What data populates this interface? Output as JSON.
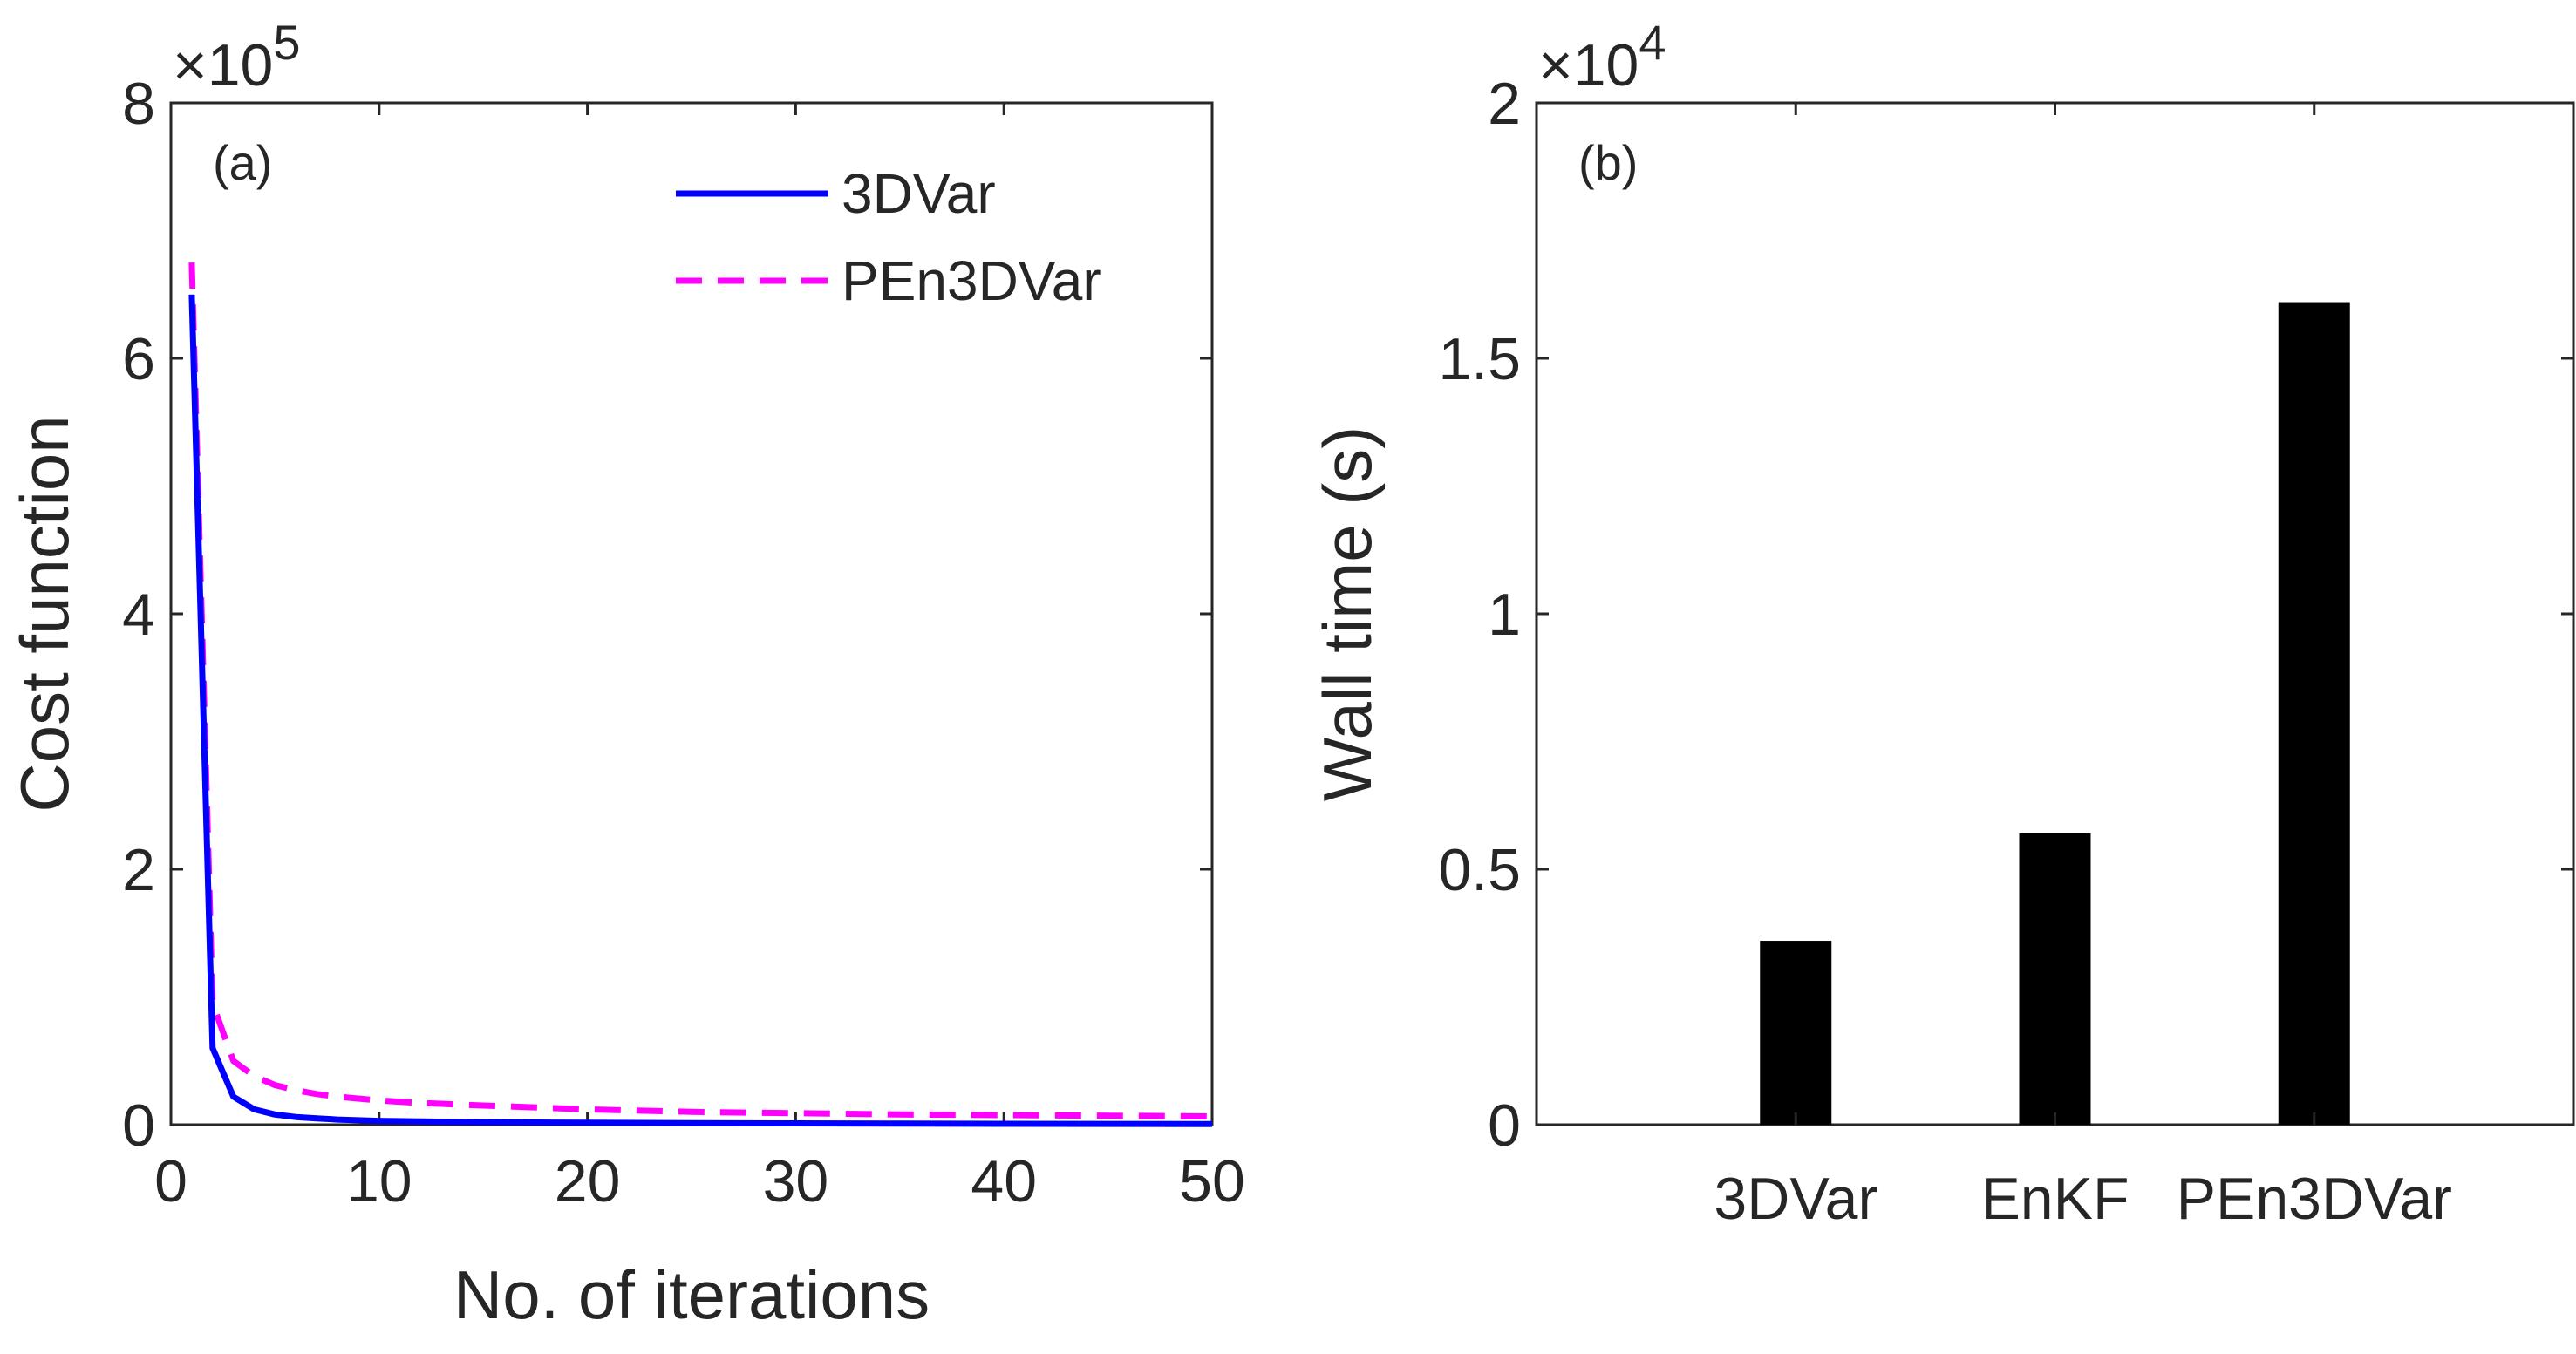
{
  "chart_data": [
    {
      "type": "line",
      "panel_label": "(a)",
      "xlabel": "No. of iterations",
      "ylabel": "Cost function",
      "y_exponent_label": "×10",
      "y_exponent": "5",
      "xlim": [
        0,
        50
      ],
      "ylim": [
        0,
        8
      ],
      "xticks": [
        "0",
        "10",
        "20",
        "30",
        "40",
        "50"
      ],
      "yticks": [
        "0",
        "2",
        "4",
        "6",
        "8"
      ],
      "legend_position": "top-right",
      "series": [
        {
          "name": "3DVar",
          "color": "#0000ff",
          "style": "solid",
          "x": [
            1,
            2,
            3,
            4,
            5,
            6,
            7,
            8,
            10,
            12,
            15,
            20,
            25,
            30,
            35,
            40,
            45,
            50
          ],
          "y": [
            6.5,
            0.6,
            0.22,
            0.12,
            0.08,
            0.06,
            0.05,
            0.04,
            0.03,
            0.025,
            0.02,
            0.015,
            0.012,
            0.01,
            0.008,
            0.007,
            0.006,
            0.005
          ]
        },
        {
          "name": "PEn3DVar",
          "color": "#ff00ff",
          "style": "dashed",
          "x": [
            1,
            2,
            3,
            4,
            5,
            6,
            7,
            8,
            10,
            12,
            15,
            20,
            25,
            30,
            35,
            40,
            45,
            50
          ],
          "y": [
            6.75,
            0.95,
            0.5,
            0.38,
            0.31,
            0.27,
            0.24,
            0.22,
            0.19,
            0.17,
            0.15,
            0.12,
            0.1,
            0.09,
            0.08,
            0.075,
            0.07,
            0.065
          ]
        }
      ]
    },
    {
      "type": "bar",
      "panel_label": "(b)",
      "xlabel": "",
      "ylabel": "Wall time (s)",
      "y_exponent_label": "×10",
      "y_exponent": "4",
      "ylim": [
        0,
        2
      ],
      "yticks": [
        "0",
        "0.5",
        "1",
        "1.5",
        "2"
      ],
      "categories": [
        "3DVar",
        "EnKF",
        "PEn3DVar"
      ],
      "values": [
        0.36,
        0.57,
        1.61
      ],
      "bar_color": "#000000"
    }
  ]
}
